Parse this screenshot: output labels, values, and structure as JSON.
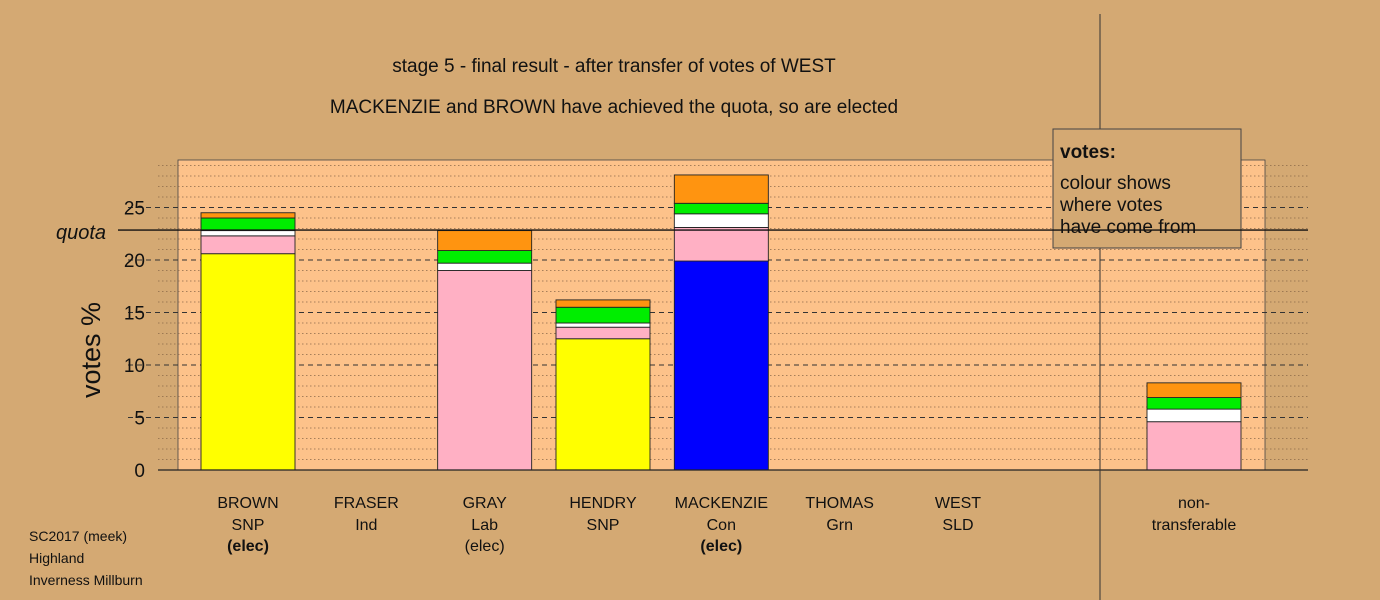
{
  "chart_data": {
    "type": "bar",
    "stacked": true,
    "title": "stage 5 - final result - after transfer of votes of WEST",
    "subtitle": "MACKENZIE and BROWN have achieved the quota, so are elected",
    "ylabel": "votes %",
    "ylim": [
      0,
      29.5
    ],
    "yticks": [
      0,
      5,
      10,
      15,
      20,
      25
    ],
    "quota": 22.85,
    "quota_label": "quota",
    "grid": true,
    "legend": {
      "title": "votes:",
      "lines": [
        "colour shows",
        "where votes",
        "have come from"
      ],
      "placement": "top-right"
    },
    "segment_colors": {
      "SNP": "#ffff00",
      "Lab": "#ffb0c4",
      "white": "#ffffff",
      "Grn": "#00ee00",
      "SLD": "#ff9410",
      "Con": "#0000ff"
    },
    "candidates": [
      {
        "name": "BROWN",
        "party": "SNP",
        "status": "(elec)",
        "status_bold": true,
        "segments": [
          {
            "color": "SNP",
            "value": 20.6
          },
          {
            "color": "Lab",
            "value": 1.7
          },
          {
            "color": "white",
            "value": 0.5
          },
          {
            "color": "Grn",
            "value": 1.2
          },
          {
            "color": "SLD",
            "value": 0.5
          }
        ]
      },
      {
        "name": "FRASER",
        "party": "Ind",
        "status": "",
        "status_bold": false,
        "segments": []
      },
      {
        "name": "GRAY",
        "party": "Lab",
        "status": "(elec)",
        "status_bold": false,
        "segments": [
          {
            "color": "Lab",
            "value": 19.0
          },
          {
            "color": "white",
            "value": 0.7
          },
          {
            "color": "Grn",
            "value": 1.2
          },
          {
            "color": "SLD",
            "value": 1.9
          }
        ]
      },
      {
        "name": "HENDRY",
        "party": "SNP",
        "status": "",
        "status_bold": false,
        "segments": [
          {
            "color": "SNP",
            "value": 12.5
          },
          {
            "color": "Lab",
            "value": 1.1
          },
          {
            "color": "white",
            "value": 0.4
          },
          {
            "color": "Grn",
            "value": 1.5
          },
          {
            "color": "SLD",
            "value": 0.7
          }
        ]
      },
      {
        "name": "MACKENZIE",
        "party": "Con",
        "status": "(elec)",
        "status_bold": true,
        "segments": [
          {
            "color": "Con",
            "value": 19.9
          },
          {
            "color": "Lab",
            "value": 3.2
          },
          {
            "color": "white",
            "value": 1.3
          },
          {
            "color": "Grn",
            "value": 1.0
          },
          {
            "color": "SLD",
            "value": 2.7
          }
        ]
      },
      {
        "name": "THOMAS",
        "party": "Grn",
        "status": "",
        "status_bold": false,
        "segments": []
      },
      {
        "name": "WEST",
        "party": "SLD",
        "status": "",
        "status_bold": false,
        "segments": []
      }
    ],
    "nontransferable": {
      "label_lines": [
        "non-",
        "transferable"
      ],
      "segments": [
        {
          "color": "Lab",
          "value": 4.6
        },
        {
          "color": "white",
          "value": 1.2
        },
        {
          "color": "Grn",
          "value": 1.1
        },
        {
          "color": "SLD",
          "value": 1.4
        }
      ]
    }
  },
  "footer": [
    "SC2017 (meek)",
    "Highland",
    "Inverness Millburn"
  ]
}
